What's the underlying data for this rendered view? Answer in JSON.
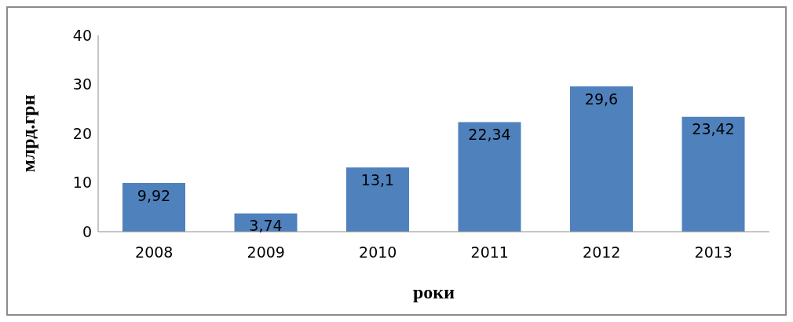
{
  "chart_data": {
    "type": "bar",
    "xlabel": "роки",
    "ylabel": "млрд.грн",
    "categories": [
      "2008",
      "2009",
      "2010",
      "2011",
      "2012",
      "2013"
    ],
    "values": [
      9.92,
      3.74,
      13.1,
      22.34,
      29.6,
      23.42
    ],
    "value_labels": [
      "9,92",
      "3,74",
      "13,1",
      "22,34",
      "29,6",
      "23,42"
    ],
    "color": "#4f81bd",
    "ylim": [
      0,
      40
    ],
    "yticks": [
      0,
      10,
      20,
      30,
      40
    ],
    "grid": false,
    "legend": false
  }
}
